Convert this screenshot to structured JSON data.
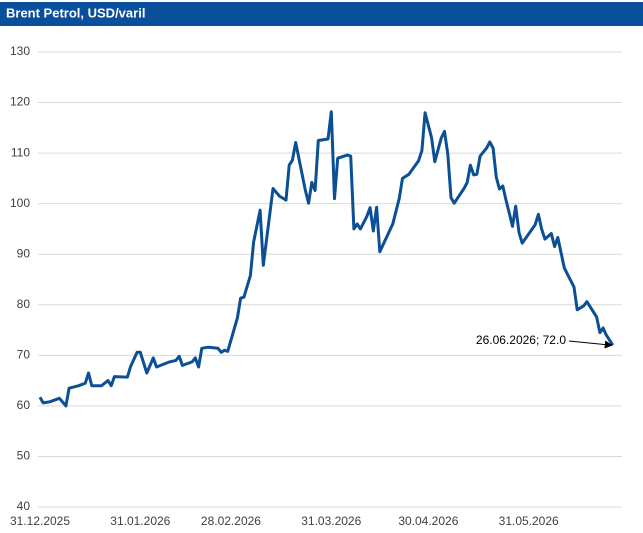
{
  "chart_data": {
    "type": "line",
    "title": "Brent Petrol, USD/varil",
    "x": [
      "2025-12-31",
      "2026-01-01",
      "2026-01-03",
      "2026-01-06",
      "2026-01-08",
      "2026-01-09",
      "2026-01-12",
      "2026-01-14",
      "2026-01-15",
      "2026-01-16",
      "2026-01-19",
      "2026-01-21",
      "2026-01-22",
      "2026-01-23",
      "2026-01-27",
      "2026-01-28",
      "2026-01-30",
      "2026-01-31",
      "2026-02-02",
      "2026-02-04",
      "2026-02-05",
      "2026-02-09",
      "2026-02-11",
      "2026-02-12",
      "2026-02-13",
      "2026-02-16",
      "2026-02-17",
      "2026-02-18",
      "2026-02-19",
      "2026-02-21",
      "2026-02-24",
      "2026-02-25",
      "2026-02-26",
      "2026-02-27",
      "2026-03-02",
      "2026-03-03",
      "2026-03-04",
      "2026-03-06",
      "2026-03-07",
      "2026-03-09",
      "2026-03-10",
      "2026-03-11",
      "2026-03-13",
      "2026-03-15",
      "2026-03-17",
      "2026-03-18",
      "2026-03-19",
      "2026-03-20",
      "2026-03-23",
      "2026-03-24",
      "2026-03-25",
      "2026-03-26",
      "2026-03-27",
      "2026-03-30",
      "2026-03-31",
      "2026-04-01",
      "2026-04-02",
      "2026-04-05",
      "2026-04-06",
      "2026-04-07",
      "2026-04-08",
      "2026-04-09",
      "2026-04-11",
      "2026-04-12",
      "2026-04-13",
      "2026-04-14",
      "2026-04-15",
      "2026-04-19",
      "2026-04-21",
      "2026-04-22",
      "2026-04-24",
      "2026-04-27",
      "2026-04-28",
      "2026-04-29",
      "2026-05-01",
      "2026-05-02",
      "2026-05-04",
      "2026-05-05",
      "2026-05-06",
      "2026-05-07",
      "2026-05-08",
      "2026-05-11",
      "2026-05-12",
      "2026-05-13",
      "2026-05-14",
      "2026-05-15",
      "2026-05-16",
      "2026-05-18",
      "2026-05-19",
      "2026-05-20",
      "2026-05-21",
      "2026-05-22",
      "2026-05-23",
      "2026-05-24",
      "2026-05-25",
      "2026-05-26",
      "2026-05-27",
      "2026-05-28",
      "2026-05-29",
      "2026-06-01",
      "2026-06-02",
      "2026-06-03",
      "2026-06-04",
      "2026-06-05",
      "2026-06-07",
      "2026-06-08",
      "2026-06-09",
      "2026-06-11",
      "2026-06-14",
      "2026-06-15",
      "2026-06-17",
      "2026-06-18",
      "2026-06-21",
      "2026-06-22",
      "2026-06-23",
      "2026-06-24",
      "2026-06-26"
    ],
    "series": [
      {
        "name": "Brent",
        "color": "#0b4f95",
        "values": [
          61.7,
          60.6,
          60.8,
          61.5,
          60,
          63.5,
          64,
          64.5,
          66.5,
          64,
          64,
          65,
          64,
          65.8,
          65.7,
          67.8,
          70.6,
          70.6,
          66.5,
          69.5,
          67.7,
          68.7,
          69,
          69.8,
          68,
          68.7,
          69.5,
          67.7,
          71.4,
          71.6,
          71.4,
          70.6,
          71,
          70.8,
          77.4,
          81.3,
          81.5,
          85.8,
          92.4,
          98.7,
          87.8,
          92.8,
          103,
          101.5,
          100.7,
          107.6,
          108.6,
          112.1,
          102.6,
          100.1,
          104.2,
          102.6,
          112.5,
          112.8,
          118.2,
          101,
          109,
          109.6,
          109.4,
          95,
          96,
          95,
          97.5,
          99.2,
          94.6,
          99.3,
          90.5,
          96,
          101,
          105,
          105.8,
          108.5,
          110.5,
          118,
          113,
          108.3,
          113,
          114.3,
          109.8,
          101.2,
          100.1,
          103,
          104.2,
          107.6,
          105.7,
          105.8,
          109.4,
          111,
          112.2,
          111,
          105.2,
          102.9,
          103.5,
          100.7,
          98.1,
          95.5,
          99.5,
          94.3,
          92.2,
          94.9,
          95.8,
          97.9,
          95,
          93,
          94.1,
          91.5,
          93.3,
          87.3,
          83.5,
          79,
          79.8,
          80.6,
          77.6,
          74.5,
          75.4,
          74,
          72
        ]
      }
    ],
    "xlim": [
      "2025-12-31",
      "2026-07-01"
    ],
    "xticks": [
      {
        "value": "2025-12-31",
        "label": "31.12.2025"
      },
      {
        "value": "2026-01-31",
        "label": "31.01.2026"
      },
      {
        "value": "2026-02-28",
        "label": "28.02.2026"
      },
      {
        "value": "2026-03-31",
        "label": "31.03.2026"
      },
      {
        "value": "2026-04-30",
        "label": "30.04.2026"
      },
      {
        "value": "2026-05-31",
        "label": "31.05.2026"
      }
    ],
    "ylim": [
      40,
      130
    ],
    "yticks": [
      40,
      50,
      60,
      70,
      80,
      90,
      100,
      110,
      120,
      130
    ],
    "grid": true,
    "annotation": "26.06.2026; 72.0"
  }
}
